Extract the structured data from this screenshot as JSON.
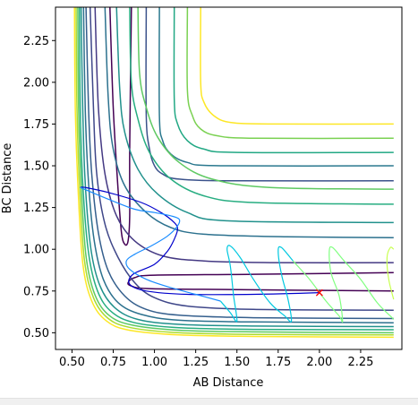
{
  "chart_data": {
    "type": "contour",
    "title": "",
    "xlabel": "AB Distance",
    "ylabel": "BC Distance",
    "xlim": [
      0.4,
      2.5
    ],
    "ylim": [
      0.4,
      2.45
    ],
    "xticks": [
      0.5,
      0.75,
      1.0,
      1.25,
      1.5,
      1.75,
      2.0,
      2.25
    ],
    "xtick_labels": [
      "0.50",
      "0.75",
      "1.00",
      "1.25",
      "1.50",
      "1.75",
      "2.00",
      "2.25"
    ],
    "yticks": [
      0.5,
      0.75,
      1.0,
      1.25,
      1.5,
      1.75,
      2.0,
      2.25
    ],
    "ytick_labels": [
      "0.50",
      "0.75",
      "1.00",
      "1.25",
      "1.50",
      "1.75",
      "2.00",
      "2.25"
    ],
    "grid": false,
    "colormap": "viridis",
    "contour_levels": [
      {
        "color": "#440154",
        "points": [
          [
            0.73,
            2.45
          ],
          [
            0.75,
            1.85
          ],
          [
            0.78,
            1.35
          ],
          [
            0.8,
            1.1
          ],
          [
            0.82,
            1.03
          ],
          [
            0.84,
            1.05
          ],
          [
            0.85,
            1.2
          ],
          [
            0.85,
            1.6
          ],
          [
            0.86,
            2.45
          ]
        ]
      },
      {
        "color": "#440154",
        "points": [
          [
            2.45,
            0.86
          ],
          [
            1.6,
            0.85
          ],
          [
            1.0,
            0.845
          ],
          [
            0.88,
            0.83
          ],
          [
            0.84,
            0.8
          ],
          [
            0.86,
            0.78
          ],
          [
            0.95,
            0.765
          ],
          [
            1.3,
            0.76
          ],
          [
            2.45,
            0.75
          ]
        ]
      },
      {
        "color": "#443983",
        "points": [
          [
            0.64,
            2.45
          ],
          [
            0.66,
            1.85
          ],
          [
            0.7,
            1.45
          ],
          [
            0.77,
            1.2
          ],
          [
            0.88,
            1.05
          ],
          [
            1.05,
            0.96
          ],
          [
            1.3,
            0.93
          ],
          [
            1.7,
            0.92
          ],
          [
            2.45,
            0.92
          ]
        ]
      },
      {
        "color": "#3f4789",
        "points": [
          [
            0.61,
            2.45
          ],
          [
            0.63,
            1.85
          ],
          [
            0.65,
            1.45
          ],
          [
            0.7,
            1.15
          ],
          [
            0.78,
            0.95
          ],
          [
            0.88,
            0.8
          ],
          [
            1.0,
            0.71
          ],
          [
            1.2,
            0.66
          ],
          [
            1.6,
            0.64
          ],
          [
            2.45,
            0.635
          ]
        ]
      },
      {
        "color": "#355f8d",
        "points": [
          [
            0.585,
            2.45
          ],
          [
            0.6,
            1.85
          ],
          [
            0.62,
            1.45
          ],
          [
            0.66,
            1.1
          ],
          [
            0.72,
            0.87
          ],
          [
            0.82,
            0.72
          ],
          [
            0.95,
            0.64
          ],
          [
            1.15,
            0.605
          ],
          [
            1.6,
            0.59
          ],
          [
            2.45,
            0.585
          ]
        ]
      },
      {
        "color": "#2c718e",
        "points": [
          [
            0.57,
            2.45
          ],
          [
            0.58,
            1.85
          ],
          [
            0.6,
            1.4
          ],
          [
            0.635,
            1.05
          ],
          [
            0.69,
            0.82
          ],
          [
            0.78,
            0.68
          ],
          [
            0.92,
            0.61
          ],
          [
            1.15,
            0.575
          ],
          [
            1.6,
            0.565
          ],
          [
            2.45,
            0.56
          ]
        ]
      },
      {
        "color": "#21918c",
        "points": [
          [
            0.555,
            2.45
          ],
          [
            0.565,
            1.85
          ],
          [
            0.58,
            1.4
          ],
          [
            0.615,
            1.0
          ],
          [
            0.67,
            0.78
          ],
          [
            0.76,
            0.65
          ],
          [
            0.9,
            0.58
          ],
          [
            1.15,
            0.55
          ],
          [
            1.6,
            0.54
          ],
          [
            2.45,
            0.537
          ]
        ]
      },
      {
        "color": "#27ad81",
        "points": [
          [
            0.545,
            2.45
          ],
          [
            0.55,
            1.85
          ],
          [
            0.565,
            1.4
          ],
          [
            0.6,
            0.98
          ],
          [
            0.655,
            0.75
          ],
          [
            0.74,
            0.625
          ],
          [
            0.88,
            0.56
          ],
          [
            1.15,
            0.53
          ],
          [
            1.6,
            0.52
          ],
          [
            2.45,
            0.518
          ]
        ]
      },
      {
        "color": "#5ec962",
        "points": [
          [
            0.535,
            2.45
          ],
          [
            0.54,
            1.85
          ],
          [
            0.555,
            1.4
          ],
          [
            0.585,
            0.96
          ],
          [
            0.64,
            0.725
          ],
          [
            0.73,
            0.6
          ],
          [
            0.87,
            0.545
          ],
          [
            1.15,
            0.515
          ],
          [
            1.6,
            0.505
          ],
          [
            2.45,
            0.5
          ]
        ]
      },
      {
        "color": "#aadc32",
        "points": [
          [
            0.525,
            2.45
          ],
          [
            0.53,
            1.85
          ],
          [
            0.545,
            1.4
          ],
          [
            0.575,
            0.94
          ],
          [
            0.63,
            0.71
          ],
          [
            0.72,
            0.585
          ],
          [
            0.86,
            0.53
          ],
          [
            1.15,
            0.5
          ],
          [
            1.6,
            0.49
          ],
          [
            2.45,
            0.487
          ]
        ]
      },
      {
        "color": "#fde725",
        "points": [
          [
            0.515,
            2.45
          ],
          [
            0.52,
            1.85
          ],
          [
            0.535,
            1.4
          ],
          [
            0.565,
            0.92
          ],
          [
            0.62,
            0.69
          ],
          [
            0.71,
            0.57
          ],
          [
            0.85,
            0.515
          ],
          [
            1.15,
            0.487
          ],
          [
            1.6,
            0.478
          ],
          [
            2.45,
            0.473
          ]
        ]
      },
      {
        "color": "#3b528b",
        "points": [
          [
            0.95,
            2.45
          ],
          [
            0.95,
            1.8
          ],
          [
            0.97,
            1.6
          ],
          [
            1.0,
            1.5
          ],
          [
            1.05,
            1.45
          ],
          [
            1.15,
            1.42
          ],
          [
            1.5,
            1.41
          ],
          [
            2.45,
            1.41
          ]
        ]
      },
      {
        "color": "#2a788e",
        "points": [
          [
            1.03,
            2.45
          ],
          [
            1.03,
            1.8
          ],
          [
            1.05,
            1.65
          ],
          [
            1.1,
            1.57
          ],
          [
            1.2,
            1.52
          ],
          [
            1.4,
            1.5
          ],
          [
            2.45,
            1.5
          ]
        ]
      },
      {
        "color": "#22a884",
        "points": [
          [
            1.12,
            2.45
          ],
          [
            1.12,
            1.9
          ],
          [
            1.14,
            1.75
          ],
          [
            1.2,
            1.65
          ],
          [
            1.3,
            1.6
          ],
          [
            1.5,
            1.58
          ],
          [
            2.45,
            1.58
          ]
        ]
      },
      {
        "color": "#7ad151",
        "points": [
          [
            1.2,
            2.45
          ],
          [
            1.2,
            1.95
          ],
          [
            1.23,
            1.8
          ],
          [
            1.28,
            1.72
          ],
          [
            1.38,
            1.68
          ],
          [
            1.6,
            1.665
          ],
          [
            2.45,
            1.665
          ]
        ]
      },
      {
        "color": "#fde725",
        "points": [
          [
            1.28,
            2.45
          ],
          [
            1.28,
            2.0
          ],
          [
            1.3,
            1.88
          ],
          [
            1.36,
            1.8
          ],
          [
            1.46,
            1.76
          ],
          [
            1.7,
            1.75
          ],
          [
            2.45,
            1.75
          ]
        ]
      },
      {
        "color": "#2c718e",
        "points": [
          [
            0.7,
            2.45
          ],
          [
            0.72,
            1.9
          ],
          [
            0.75,
            1.6
          ],
          [
            0.82,
            1.38
          ],
          [
            0.95,
            1.22
          ],
          [
            1.1,
            1.13
          ],
          [
            1.3,
            1.09
          ],
          [
            1.8,
            1.075
          ],
          [
            2.45,
            1.07
          ]
        ]
      },
      {
        "color": "#21918c",
        "points": [
          [
            0.77,
            2.45
          ],
          [
            0.79,
            1.95
          ],
          [
            0.82,
            1.7
          ],
          [
            0.9,
            1.48
          ],
          [
            1.02,
            1.33
          ],
          [
            1.2,
            1.22
          ],
          [
            1.45,
            1.17
          ],
          [
            2.45,
            1.16
          ]
        ]
      },
      {
        "color": "#27ad81",
        "points": [
          [
            0.85,
            2.45
          ],
          [
            0.86,
            2.0
          ],
          [
            0.9,
            1.78
          ],
          [
            0.97,
            1.58
          ],
          [
            1.1,
            1.42
          ],
          [
            1.3,
            1.32
          ],
          [
            1.6,
            1.28
          ],
          [
            2.45,
            1.27
          ]
        ]
      },
      {
        "color": "#5ec962",
        "points": [
          [
            0.9,
            2.45
          ],
          [
            0.91,
            2.05
          ],
          [
            0.95,
            1.85
          ],
          [
            1.02,
            1.67
          ],
          [
            1.15,
            1.52
          ],
          [
            1.35,
            1.42
          ],
          [
            1.7,
            1.37
          ],
          [
            2.45,
            1.36
          ]
        ]
      }
    ],
    "trajectory": [
      {
        "color": "#0000cc",
        "points": [
          [
            2.0,
            0.74
          ],
          [
            1.6,
            0.73
          ],
          [
            1.2,
            0.73
          ],
          [
            0.95,
            0.75
          ],
          [
            0.85,
            0.79
          ],
          [
            0.87,
            0.85
          ],
          [
            1.0,
            0.91
          ],
          [
            1.08,
            0.99
          ],
          [
            1.12,
            1.06
          ],
          [
            1.14,
            1.12
          ],
          [
            1.12,
            1.16
          ],
          [
            1.04,
            1.22
          ],
          [
            0.92,
            1.28
          ],
          [
            0.72,
            1.34
          ],
          [
            0.58,
            1.37
          ],
          [
            0.55,
            1.37
          ]
        ]
      },
      {
        "color": "#1a8cff",
        "points": [
          [
            0.55,
            1.37
          ],
          [
            0.72,
            1.3
          ],
          [
            0.88,
            1.24
          ],
          [
            1.0,
            1.22
          ],
          [
            1.1,
            1.2
          ],
          [
            1.15,
            1.18
          ],
          [
            1.14,
            1.14
          ],
          [
            1.08,
            1.08
          ],
          [
            0.98,
            1.02
          ],
          [
            0.88,
            0.97
          ],
          [
            0.83,
            0.93
          ],
          [
            0.85,
            0.88
          ],
          [
            0.95,
            0.82
          ],
          [
            1.1,
            0.77
          ],
          [
            1.25,
            0.73
          ],
          [
            1.4,
            0.69
          ]
        ]
      },
      {
        "color": "#00c8e0",
        "points": [
          [
            1.4,
            0.69
          ],
          [
            1.46,
            0.62
          ],
          [
            1.5,
            0.57
          ],
          [
            1.48,
            0.72
          ],
          [
            1.46,
            0.9
          ],
          [
            1.44,
            1.0
          ],
          [
            1.46,
            1.02
          ],
          [
            1.52,
            0.95
          ],
          [
            1.6,
            0.82
          ],
          [
            1.7,
            0.68
          ],
          [
            1.79,
            0.6
          ],
          [
            1.83,
            0.57
          ],
          [
            1.81,
            0.7
          ],
          [
            1.77,
            0.85
          ],
          [
            1.75,
            0.99
          ],
          [
            1.77,
            1.01
          ],
          [
            1.84,
            0.93
          ]
        ]
      },
      {
        "color": "#80ff80",
        "points": [
          [
            1.84,
            0.93
          ],
          [
            1.94,
            0.82
          ],
          [
            2.04,
            0.69
          ],
          [
            2.12,
            0.6
          ],
          [
            2.14,
            0.57
          ],
          [
            2.12,
            0.72
          ],
          [
            2.07,
            0.86
          ],
          [
            2.06,
            0.99
          ],
          [
            2.08,
            1.01
          ],
          [
            2.15,
            0.93
          ],
          [
            2.25,
            0.82
          ],
          [
            2.35,
            0.68
          ],
          [
            2.43,
            0.6
          ],
          [
            2.45,
            0.58
          ]
        ]
      },
      {
        "color": "#c8ff50",
        "points": [
          [
            2.45,
            0.7
          ],
          [
            2.42,
            0.82
          ],
          [
            2.41,
            0.95
          ],
          [
            2.43,
            1.01
          ],
          [
            2.45,
            1.0
          ]
        ]
      }
    ],
    "marker": {
      "x": 2.0,
      "y": 0.74,
      "symbol": "x",
      "color": "#ff0000"
    }
  }
}
